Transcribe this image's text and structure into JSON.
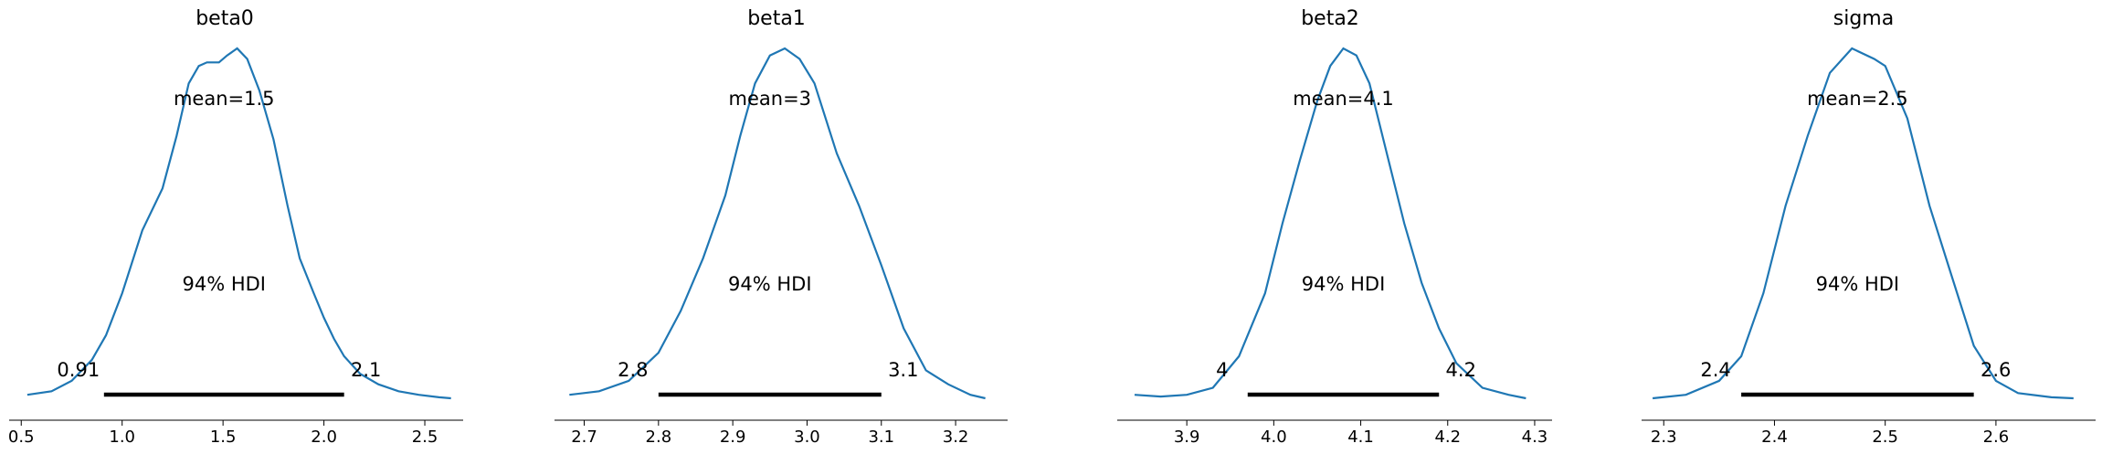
{
  "chart_data": [
    {
      "type": "area",
      "title": "beta0",
      "mean_label": "mean=1.5",
      "hdi_label": "94% HDI",
      "hdi": {
        "low": 0.91,
        "high": 2.1,
        "low_label": "0.91",
        "high_label": "2.1"
      },
      "xlim": [
        0.44,
        2.69
      ],
      "xticks": [
        0.5,
        1.0,
        1.5,
        2.0,
        2.5
      ],
      "xtick_labels": [
        "0.5",
        "1.0",
        "1.5",
        "2.0",
        "2.5"
      ],
      "density": {
        "x": [
          0.53,
          0.65,
          0.75,
          0.85,
          0.92,
          1.0,
          1.1,
          1.2,
          1.27,
          1.33,
          1.38,
          1.42,
          1.48,
          1.52,
          1.57,
          1.62,
          1.68,
          1.75,
          1.82,
          1.88,
          1.95,
          2.0,
          2.05,
          2.1,
          2.18,
          2.27,
          2.37,
          2.47,
          2.57,
          2.63
        ],
        "y": [
          0.01,
          0.02,
          0.05,
          0.11,
          0.18,
          0.3,
          0.48,
          0.6,
          0.75,
          0.9,
          0.95,
          0.96,
          0.96,
          0.98,
          1.0,
          0.97,
          0.88,
          0.74,
          0.55,
          0.4,
          0.3,
          0.23,
          0.17,
          0.12,
          0.07,
          0.04,
          0.02,
          0.01,
          0.003,
          0.0
        ]
      }
    },
    {
      "type": "area",
      "title": "beta1",
      "mean_label": "mean=3",
      "hdi_label": "94% HDI",
      "hdi": {
        "low": 2.8,
        "high": 3.1,
        "low_label": "2.8",
        "high_label": "3.1"
      },
      "xlim": [
        2.66,
        3.27
      ],
      "xticks": [
        2.7,
        2.8,
        2.9,
        3.0,
        3.1,
        3.2
      ],
      "xtick_labels": [
        "2.7",
        "2.8",
        "2.9",
        "3.0",
        "3.1",
        "3.2"
      ],
      "density": {
        "x": [
          2.68,
          2.72,
          2.76,
          2.8,
          2.83,
          2.86,
          2.89,
          2.91,
          2.93,
          2.95,
          2.97,
          2.99,
          3.01,
          3.04,
          3.07,
          3.1,
          3.13,
          3.16,
          3.19,
          3.22,
          3.24
        ],
        "y": [
          0.01,
          0.02,
          0.05,
          0.13,
          0.25,
          0.4,
          0.58,
          0.75,
          0.9,
          0.98,
          1.0,
          0.97,
          0.9,
          0.7,
          0.55,
          0.38,
          0.2,
          0.08,
          0.04,
          0.01,
          0.0
        ]
      }
    },
    {
      "type": "area",
      "title": "beta2",
      "mean_label": "mean=4.1",
      "hdi_label": "94% HDI",
      "hdi": {
        "low": 3.97,
        "high": 4.19,
        "low_label": "4",
        "high_label": "4.2"
      },
      "xlim": [
        3.82,
        4.32
      ],
      "xticks": [
        3.9,
        4.0,
        4.1,
        4.2,
        4.3
      ],
      "xtick_labels": [
        "3.9",
        "4.0",
        "4.1",
        "4.2",
        "4.3"
      ],
      "density": {
        "x": [
          3.84,
          3.87,
          3.9,
          3.93,
          3.96,
          3.99,
          4.01,
          4.03,
          4.05,
          4.065,
          4.08,
          4.095,
          4.11,
          4.13,
          4.15,
          4.17,
          4.19,
          4.21,
          4.24,
          4.27,
          4.29
        ],
        "y": [
          0.01,
          0.005,
          0.01,
          0.03,
          0.12,
          0.3,
          0.5,
          0.68,
          0.85,
          0.95,
          1.0,
          0.98,
          0.9,
          0.7,
          0.5,
          0.33,
          0.2,
          0.1,
          0.03,
          0.01,
          0.0
        ]
      }
    },
    {
      "type": "area",
      "title": "sigma",
      "mean_label": "mean=2.5",
      "hdi_label": "94% HDI",
      "hdi": {
        "low": 2.37,
        "high": 2.58,
        "low_label": "2.4",
        "high_label": "2.6"
      },
      "xlim": [
        2.28,
        2.69
      ],
      "xticks": [
        2.3,
        2.4,
        2.5,
        2.6
      ],
      "xtick_labels": [
        "2.3",
        "2.4",
        "2.5",
        "2.6"
      ],
      "density": {
        "x": [
          2.29,
          2.32,
          2.35,
          2.37,
          2.39,
          2.41,
          2.43,
          2.45,
          2.47,
          2.49,
          2.5,
          2.52,
          2.54,
          2.56,
          2.58,
          2.6,
          2.62,
          2.65,
          2.67
        ],
        "y": [
          0.0,
          0.01,
          0.05,
          0.12,
          0.3,
          0.55,
          0.75,
          0.93,
          1.0,
          0.97,
          0.95,
          0.8,
          0.55,
          0.35,
          0.15,
          0.05,
          0.015,
          0.003,
          0.0
        ]
      }
    }
  ]
}
